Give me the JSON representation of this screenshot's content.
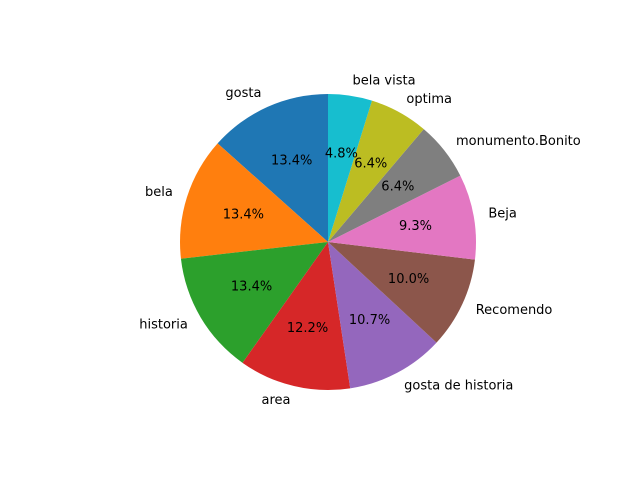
{
  "chart_data": {
    "type": "pie",
    "title": "",
    "start_angle_deg": 90,
    "direction": "counterclockwise",
    "slices": [
      {
        "label": "gosta",
        "value": 13.4,
        "pct_label": "13.4%",
        "color": "#1f77b4"
      },
      {
        "label": "bela",
        "value": 13.4,
        "pct_label": "13.4%",
        "color": "#ff7f0e"
      },
      {
        "label": "historia",
        "value": 13.4,
        "pct_label": "13.4%",
        "color": "#2ca02c"
      },
      {
        "label": "area",
        "value": 12.2,
        "pct_label": "12.2%",
        "color": "#d62728"
      },
      {
        "label": "gosta de historia",
        "value": 10.7,
        "pct_label": "10.7%",
        "color": "#9467bd"
      },
      {
        "label": "Recomendo",
        "value": 10.0,
        "pct_label": "10.0%",
        "color": "#8c564b"
      },
      {
        "label": "Beja",
        "value": 9.3,
        "pct_label": "9.3%",
        "color": "#e377c2"
      },
      {
        "label": "monumento.Bonito",
        "value": 6.4,
        "pct_label": "6.4%",
        "color": "#7f7f7f"
      },
      {
        "label": "optima",
        "value": 6.4,
        "pct_label": "6.4%",
        "color": "#bcbd22"
      },
      {
        "label": "bela vista",
        "value": 4.8,
        "pct_label": "4.8%",
        "color": "#17becf"
      }
    ]
  }
}
